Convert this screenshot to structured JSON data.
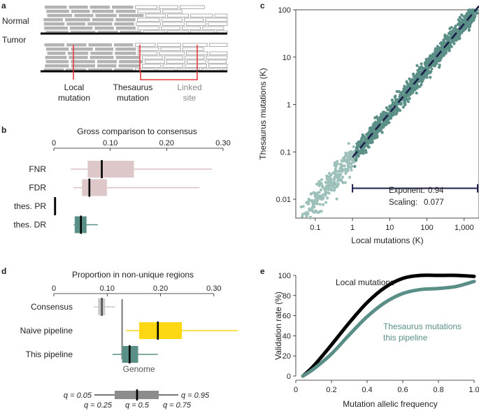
{
  "figure": {
    "panel_labels": [
      "a",
      "b",
      "c",
      "d",
      "e"
    ],
    "colors": {
      "teal": "#5a8f87",
      "light_teal": "#9dc1ba",
      "pink": "#ddc7c8",
      "pink_line": "#d9bfc0",
      "yellow": "#fdd711",
      "gray": "#bbbbbb",
      "dark_gray": "#888888",
      "navy": "#1b1f4a",
      "red": "#e8393c"
    }
  },
  "panel_a": {
    "rows": [
      "Normal",
      "Tumor"
    ],
    "annotations": [
      {
        "line1": "Local",
        "line2": "mutation"
      },
      {
        "line1": "Thesaurus",
        "line2": "mutation"
      },
      {
        "line1": "Linked",
        "line2": "site"
      }
    ]
  },
  "chart_data": [
    {
      "id": "b",
      "type": "box",
      "title": "Gross comparison to consensus",
      "xlim": [
        0,
        0.3
      ],
      "ticks": [
        "0",
        "0.10",
        "0.20",
        "0.30"
      ],
      "tick_values": [
        0,
        0.1,
        0.2,
        0.3
      ],
      "rows": [
        {
          "label": "FNR",
          "q05": 0.03,
          "q25": 0.06,
          "median": 0.085,
          "q75": 0.142,
          "q95": 0.28,
          "color": "pink"
        },
        {
          "label": "FDR",
          "q05": 0.035,
          "q25": 0.05,
          "median": 0.063,
          "q75": 0.094,
          "q95": 0.258,
          "color": "pink"
        },
        {
          "label": "thes. PR",
          "q05": 0.001,
          "q25": 0.0015,
          "median": 0.002,
          "q75": 0.003,
          "q95": 0.004,
          "color": "navy"
        },
        {
          "label": "thes. DR",
          "q05": 0.035,
          "q25": 0.037,
          "median": 0.048,
          "q75": 0.058,
          "q95": 0.078,
          "color": "teal"
        }
      ]
    },
    {
      "id": "c",
      "type": "scatter",
      "xlabel": "Local mutations (K)",
      "ylabel": "Thesaurus mutations (K)",
      "x_scale": "log",
      "y_scale": "log",
      "xlim": [
        0.03,
        2500
      ],
      "ylim": [
        0.004,
        100
      ],
      "x_ticks": [
        "0.1",
        "1",
        "10",
        "100",
        "1,000"
      ],
      "x_tick_values": [
        0.1,
        1,
        10,
        100,
        1000
      ],
      "y_ticks": [
        "0.01",
        "0.1",
        "1",
        "10",
        "100"
      ],
      "y_tick_values": [
        0.01,
        0.1,
        1,
        10,
        100
      ],
      "fit": {
        "exponent": 0.94,
        "scaling": 0.077
      },
      "fit_x_range": [
        1,
        2500
      ],
      "range_bar": [
        1,
        2500
      ],
      "range_bar_y": 0.017,
      "fit_text": {
        "exponent_label": "Exponent:",
        "exponent_value": "0.94",
        "scaling_label": "Scaling:",
        "scaling_value": "0.077"
      }
    },
    {
      "id": "d",
      "type": "box",
      "title": "Proportion in non-unique regions",
      "xlim": [
        0,
        0.35
      ],
      "ticks": [
        "0",
        "0.10",
        "0.20",
        "0.30"
      ],
      "tick_values": [
        0,
        0.1,
        0.2,
        0.3
      ],
      "genome_value": 0.128,
      "genome_label": "Genome",
      "rows": [
        {
          "label": "Consensus",
          "q05": 0.075,
          "q25": 0.083,
          "median": 0.09,
          "q75": 0.096,
          "q95": 0.115,
          "color": "gray"
        },
        {
          "label": "Naive pipeline",
          "q05": 0.135,
          "q25": 0.16,
          "median": 0.195,
          "q75": 0.24,
          "q95": 0.345,
          "color": "yellow"
        },
        {
          "label": "This pipeline",
          "q05": 0.11,
          "q25": 0.128,
          "median": 0.142,
          "q75": 0.158,
          "q95": 0.195,
          "color": "teal"
        }
      ],
      "legend": {
        "q05": "q = 0.05",
        "q25": "q = 0.25",
        "q50": "q = 0.5",
        "q75": "q = 0.75",
        "q95": "q = 0.95"
      }
    },
    {
      "id": "e",
      "type": "line",
      "xlabel": "Mutation allelic frequency",
      "ylabel": "Validation rate (%)",
      "xlim": [
        0,
        1.0
      ],
      "ylim": [
        0,
        100
      ],
      "x_ticks": [
        "0",
        "0.2",
        "0.4",
        "0.6",
        "0.8",
        "1.0"
      ],
      "x_tick_values": [
        0,
        0.2,
        0.4,
        0.6,
        0.8,
        1.0
      ],
      "y_ticks": [
        "0",
        "20",
        "40",
        "60",
        "80",
        "100"
      ],
      "y_tick_values": [
        0,
        20,
        40,
        60,
        80,
        100
      ],
      "series": [
        {
          "name": "Local mutations",
          "label_line2": "",
          "color": "navy_black",
          "x": [
            0.04,
            0.1,
            0.2,
            0.3,
            0.4,
            0.5,
            0.6,
            0.7,
            0.8,
            0.9,
            1.0
          ],
          "y": [
            0,
            10,
            31,
            53,
            73,
            88,
            97,
            100,
            100,
            100,
            99
          ]
        },
        {
          "name": "Thesaurus mutations",
          "label_line2": "this pipeline",
          "color": "teal",
          "x": [
            0.04,
            0.1,
            0.2,
            0.3,
            0.4,
            0.5,
            0.6,
            0.7,
            0.8,
            0.9,
            1.0
          ],
          "y": [
            0,
            7,
            22,
            41,
            59,
            73,
            82,
            86,
            87,
            89,
            94
          ]
        }
      ]
    }
  ]
}
